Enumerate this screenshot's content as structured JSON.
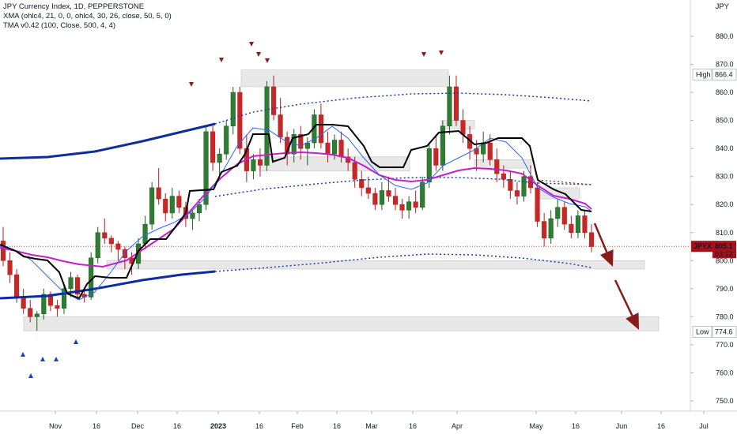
{
  "legend": {
    "title": "JPY Currency Index, 1D, PEPPERSTONE",
    "ind1": "XMA (ohlc4, 21, 0, 0, ohlc4, 30, 26, close, 50, 5, 0)",
    "ind2": "TMA v0.42 (100, Close, 500, 4, 4)"
  },
  "currency": "JPY",
  "colors": {
    "up": "#26a69a",
    "down": "#ef5350",
    "up_dark": "#1b5e20",
    "down_dark": "#b71c1c",
    "blue_band": "#0d2ca0",
    "magenta": "#c71ec7",
    "blue_thin": "#2962ff",
    "black": "#000000",
    "arrow": "#8b1a1a",
    "zone": "#e9e9e9",
    "price_tag": "#a8111b"
  },
  "chart_data": {
    "type": "candlestick",
    "ylim": [
      745,
      890
    ],
    "y_ticks": [
      "750.0",
      "760.0",
      "770.0",
      "780.0",
      "790.0",
      "800.0",
      "810.0",
      "820.0",
      "830.0",
      "840.0",
      "850.0",
      "860.0",
      "870.0",
      "880.0"
    ],
    "x_ticks": [
      "Nov",
      "16",
      "Dec",
      "16",
      "2023",
      "16",
      "Feb",
      "16",
      "Mar",
      "16",
      "Apr",
      "May",
      "16",
      "Jun",
      "16",
      "Jul"
    ],
    "labels": {
      "high": {
        "text": "High",
        "value": "866.4"
      },
      "low": {
        "text": "Low",
        "value": "774.6"
      },
      "last": {
        "symbol": "JPYX",
        "value": "805.1",
        "countdown": "03:12"
      }
    },
    "candles": [
      [
        807,
        812,
        798,
        800
      ],
      [
        800,
        803,
        792,
        795
      ],
      [
        795,
        797,
        785,
        787
      ],
      [
        787,
        790,
        781,
        783
      ],
      [
        783,
        786,
        778,
        780
      ],
      [
        780,
        782,
        775,
        781
      ],
      [
        781,
        790,
        779,
        788
      ],
      [
        788,
        789,
        782,
        784
      ],
      [
        784,
        786,
        780,
        783
      ],
      [
        783,
        792,
        781,
        790
      ],
      [
        790,
        796,
        787,
        794
      ],
      [
        794,
        795,
        786,
        788
      ],
      [
        788,
        790,
        785,
        787
      ],
      [
        787,
        803,
        786,
        801
      ],
      [
        801,
        812,
        799,
        810
      ],
      [
        810,
        815,
        806,
        808
      ],
      [
        808,
        809,
        803,
        806
      ],
      [
        806,
        807,
        800,
        804
      ],
      [
        804,
        805,
        797,
        801
      ],
      [
        801,
        803,
        795,
        799
      ],
      [
        799,
        808,
        797,
        806
      ],
      [
        806,
        816,
        804,
        813
      ],
      [
        813,
        828,
        811,
        826
      ],
      [
        826,
        833,
        820,
        822
      ],
      [
        822,
        824,
        814,
        817
      ],
      [
        817,
        826,
        815,
        823
      ],
      [
        823,
        825,
        817,
        819
      ],
      [
        819,
        821,
        812,
        815
      ],
      [
        815,
        818,
        811,
        817
      ],
      [
        817,
        822,
        814,
        820
      ],
      [
        820,
        848,
        818,
        846
      ],
      [
        846,
        848,
        832,
        835
      ],
      [
        835,
        840,
        829,
        838
      ],
      [
        838,
        850,
        836,
        848
      ],
      [
        848,
        862,
        845,
        860
      ],
      [
        860,
        862,
        838,
        840
      ],
      [
        840,
        845,
        828,
        832
      ],
      [
        832,
        838,
        829,
        836
      ],
      [
        836,
        840,
        830,
        834
      ],
      [
        834,
        864,
        832,
        862
      ],
      [
        862,
        866,
        850,
        852
      ],
      [
        852,
        858,
        842,
        844
      ],
      [
        844,
        846,
        834,
        838
      ],
      [
        838,
        847,
        835,
        845
      ],
      [
        845,
        848,
        836,
        840
      ],
      [
        840,
        844,
        834,
        842
      ],
      [
        842,
        854,
        840,
        852
      ],
      [
        852,
        856,
        840,
        842
      ],
      [
        842,
        846,
        835,
        838
      ],
      [
        838,
        845,
        836,
        843
      ],
      [
        843,
        846,
        835,
        837
      ],
      [
        837,
        840,
        832,
        835
      ],
      [
        835,
        837,
        826,
        829
      ],
      [
        829,
        832,
        823,
        826
      ],
      [
        826,
        830,
        822,
        824
      ],
      [
        824,
        826,
        818,
        820
      ],
      [
        820,
        828,
        818,
        825
      ],
      [
        825,
        830,
        821,
        823
      ],
      [
        823,
        826,
        818,
        820
      ],
      [
        820,
        822,
        815,
        818
      ],
      [
        818,
        823,
        815,
        821
      ],
      [
        821,
        825,
        817,
        819
      ],
      [
        819,
        830,
        818,
        828
      ],
      [
        828,
        842,
        826,
        840
      ],
      [
        840,
        845,
        832,
        834
      ],
      [
        834,
        850,
        832,
        848
      ],
      [
        848,
        866,
        845,
        862
      ],
      [
        862,
        866,
        848,
        850
      ],
      [
        850,
        854,
        842,
        845
      ],
      [
        845,
        848,
        836,
        840
      ],
      [
        840,
        843,
        832,
        838
      ],
      [
        838,
        846,
        835,
        842
      ],
      [
        842,
        845,
        834,
        836
      ],
      [
        836,
        840,
        828,
        831
      ],
      [
        831,
        834,
        826,
        829
      ],
      [
        829,
        832,
        822,
        825
      ],
      [
        825,
        828,
        820,
        823
      ],
      [
        823,
        832,
        821,
        830
      ],
      [
        830,
        834,
        824,
        826
      ],
      [
        826,
        828,
        812,
        814
      ],
      [
        814,
        817,
        805,
        808
      ],
      [
        808,
        818,
        806,
        815
      ],
      [
        815,
        822,
        812,
        819
      ],
      [
        819,
        821,
        811,
        813
      ],
      [
        813,
        816,
        808,
        810
      ],
      [
        810,
        818,
        808,
        816
      ],
      [
        816,
        818,
        808,
        810
      ],
      [
        810,
        813,
        803,
        805
      ]
    ]
  }
}
